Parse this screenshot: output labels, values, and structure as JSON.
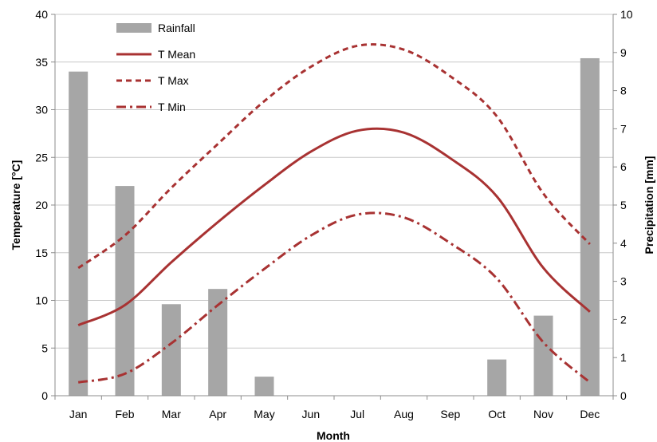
{
  "chart_data": {
    "type": "bar+line",
    "xlabel": "Month",
    "ylabel_left": "Temperature [°C]",
    "ylabel_right": "Precipitation [mm]",
    "categories": [
      "Jan",
      "Feb",
      "Mar",
      "Apr",
      "May",
      "Jun",
      "Jul",
      "Aug",
      "Sep",
      "Oct",
      "Nov",
      "Dec"
    ],
    "ylim_left": [
      0,
      40
    ],
    "yticks_left": [
      0,
      5,
      10,
      15,
      20,
      25,
      30,
      35,
      40
    ],
    "ylim_right": [
      0,
      10
    ],
    "yticks_right": [
      0,
      1,
      2,
      3,
      4,
      5,
      6,
      7,
      8,
      9,
      10
    ],
    "grid": "horizontal",
    "legend_position": "top-left",
    "series": [
      {
        "name": "Rainfall",
        "kind": "bar",
        "axis": "right",
        "color": "#a6a6a6",
        "values": [
          8.5,
          5.5,
          2.4,
          2.8,
          0.5,
          0,
          0,
          0,
          0,
          0.95,
          2.1,
          8.85
        ]
      },
      {
        "name": "T Mean",
        "kind": "line",
        "style": "solid",
        "axis": "left",
        "color": "#a83232",
        "values": [
          7.4,
          9.5,
          14.0,
          18.2,
          22.1,
          25.6,
          27.8,
          27.6,
          24.9,
          20.9,
          13.4,
          8.8
        ]
      },
      {
        "name": "T Max",
        "kind": "line",
        "style": "dashed",
        "axis": "left",
        "color": "#a83232",
        "values": [
          13.4,
          16.8,
          21.8,
          26.4,
          30.9,
          34.5,
          36.7,
          36.3,
          33.5,
          29.3,
          21.2,
          15.9
        ]
      },
      {
        "name": "T Min",
        "kind": "line",
        "style": "dashdot",
        "axis": "left",
        "color": "#a83232",
        "values": [
          1.4,
          2.3,
          5.5,
          9.5,
          13.3,
          16.8,
          19.0,
          18.7,
          16.0,
          12.3,
          5.6,
          1.4
        ]
      }
    ]
  }
}
